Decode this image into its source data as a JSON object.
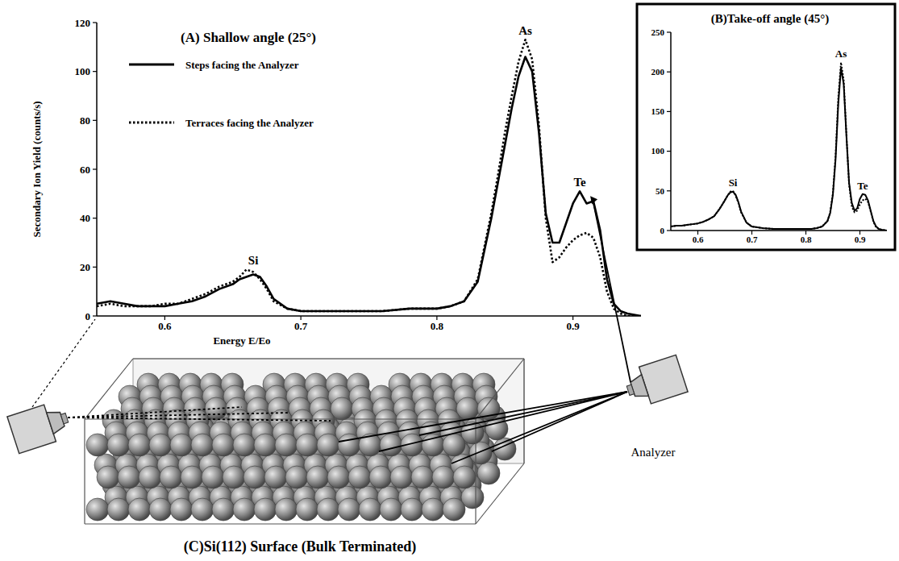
{
  "chart_data": [
    {
      "type": "line",
      "title": "(A) Shallow angle (25°)",
      "x_label": "Energy E/Eo",
      "y_label": "Secondary Ion Yield (counts/s)",
      "x": [
        0.55,
        0.56,
        0.57,
        0.58,
        0.59,
        0.6,
        0.61,
        0.62,
        0.63,
        0.64,
        0.65,
        0.655,
        0.66,
        0.665,
        0.67,
        0.675,
        0.68,
        0.69,
        0.7,
        0.72,
        0.74,
        0.76,
        0.78,
        0.8,
        0.81,
        0.82,
        0.83,
        0.84,
        0.845,
        0.85,
        0.855,
        0.86,
        0.865,
        0.87,
        0.875,
        0.88,
        0.885,
        0.89,
        0.895,
        0.9,
        0.905,
        0.91,
        0.915,
        0.92,
        0.925,
        0.93,
        0.935,
        0.94,
        0.95
      ],
      "series": [
        {
          "name": "Steps facing the Analyzer",
          "color": "#000000",
          "line_style": "solid",
          "values": [
            5,
            6,
            5,
            4,
            4,
            4,
            5,
            6,
            8,
            11,
            13,
            15,
            16,
            17,
            16,
            12,
            7,
            3,
            2,
            2,
            2,
            2,
            3,
            3,
            4,
            6,
            14,
            40,
            55,
            70,
            85,
            98,
            106,
            100,
            75,
            42,
            30,
            30,
            38,
            46,
            51,
            46,
            47,
            35,
            15,
            5,
            2,
            1,
            0
          ]
        },
        {
          "name": "Terraces facing the Analyzer",
          "color": "#000000",
          "line_style": "dotted",
          "values": [
            4,
            5,
            4,
            4,
            4,
            5,
            5,
            7,
            9,
            12,
            14,
            16,
            19,
            18,
            15,
            11,
            6,
            3,
            2,
            2,
            2,
            2,
            3,
            3,
            4,
            6,
            15,
            42,
            58,
            75,
            90,
            104,
            113,
            105,
            78,
            40,
            22,
            24,
            28,
            31,
            33,
            34,
            32,
            24,
            10,
            3,
            1,
            0,
            0
          ]
        }
      ],
      "xlim": [
        0.55,
        0.95
      ],
      "ylim": [
        0,
        120
      ],
      "xticks": [
        0.6,
        0.7,
        0.8,
        0.9
      ],
      "yticks": [
        0,
        20,
        40,
        60,
        80,
        100,
        120
      ],
      "grid": false,
      "legend": "upper left",
      "annotations": [
        {
          "text": "Si",
          "x": 0.665
        },
        {
          "text": "As",
          "x": 0.865
        },
        {
          "text": "Te",
          "x": 0.905
        }
      ]
    },
    {
      "type": "line",
      "title": "(B)Take-off angle (45°)",
      "x": [
        0.55,
        0.56,
        0.57,
        0.58,
        0.59,
        0.6,
        0.61,
        0.62,
        0.63,
        0.64,
        0.65,
        0.655,
        0.66,
        0.665,
        0.67,
        0.675,
        0.68,
        0.69,
        0.7,
        0.72,
        0.74,
        0.76,
        0.78,
        0.8,
        0.81,
        0.82,
        0.83,
        0.84,
        0.845,
        0.85,
        0.855,
        0.86,
        0.865,
        0.87,
        0.875,
        0.88,
        0.885,
        0.89,
        0.895,
        0.9,
        0.905,
        0.91,
        0.915,
        0.92,
        0.925,
        0.93,
        0.935,
        0.94,
        0.95
      ],
      "series": [
        {
          "color": "#000000",
          "line_style": "solid",
          "values": [
            5,
            6,
            6,
            7,
            8,
            9,
            11,
            14,
            18,
            27,
            38,
            44,
            48,
            49,
            45,
            36,
            24,
            10,
            5,
            3,
            2,
            2,
            2,
            2,
            2,
            3,
            5,
            12,
            22,
            45,
            90,
            160,
            205,
            185,
            120,
            60,
            35,
            25,
            28,
            40,
            46,
            45,
            38,
            25,
            12,
            5,
            2,
            1,
            0
          ]
        },
        {
          "color": "#000000",
          "line_style": "dotted",
          "values": [
            5,
            6,
            6,
            7,
            8,
            9,
            11,
            14,
            18,
            27,
            38,
            44,
            49,
            50,
            44,
            35,
            23,
            10,
            5,
            3,
            2,
            2,
            2,
            2,
            2,
            3,
            5,
            12,
            23,
            47,
            95,
            168,
            212,
            190,
            122,
            58,
            30,
            23,
            25,
            33,
            38,
            40,
            36,
            24,
            11,
            4,
            2,
            1,
            0
          ]
        }
      ],
      "xlim": [
        0.55,
        0.95
      ],
      "ylim": [
        0,
        250
      ],
      "xticks": [
        0.6,
        0.7,
        0.8,
        0.9
      ],
      "yticks": [
        0,
        50,
        100,
        150,
        200,
        250
      ],
      "grid": false,
      "annotations": [
        {
          "text": "Si",
          "x": 0.665
        },
        {
          "text": "As",
          "x": 0.865
        },
        {
          "text": "Te",
          "x": 0.905
        }
      ]
    }
  ],
  "diagram": {
    "caption": "(C)Si(112) Surface (Bulk Terminated)",
    "analyzer_label": "Analyzer"
  }
}
